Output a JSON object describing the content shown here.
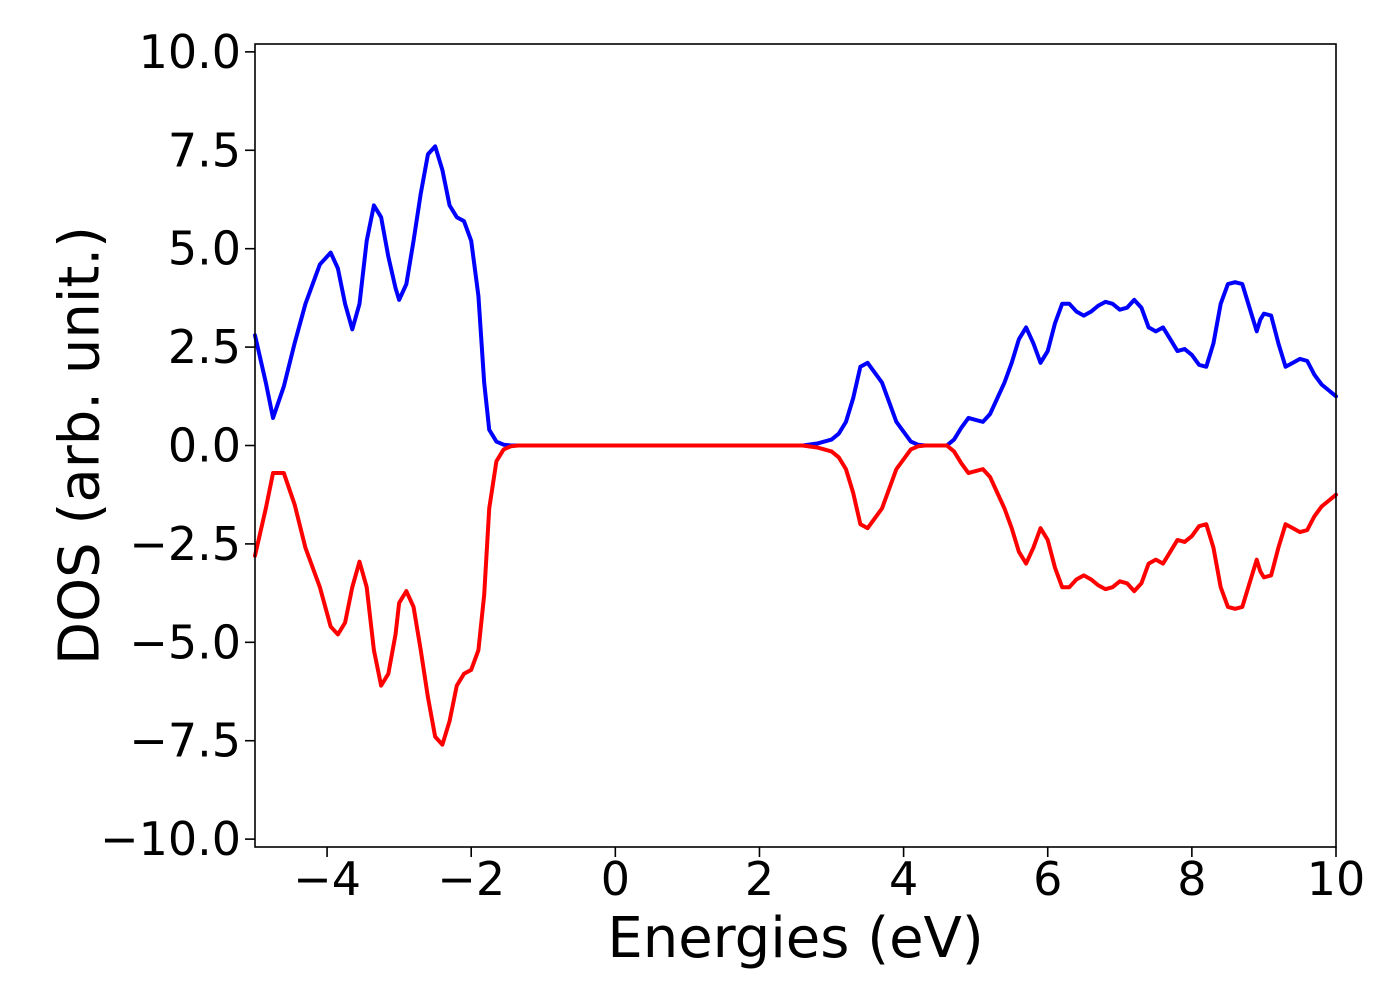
{
  "chart_data": {
    "type": "line",
    "title": "",
    "xlabel": "Energies (eV)",
    "ylabel": "DOS (arb. unit.)",
    "xlim": [
      -5,
      10
    ],
    "ylim": [
      -10.2,
      10.2
    ],
    "xticks": [
      -4,
      -2,
      0,
      2,
      4,
      6,
      8,
      10
    ],
    "xtick_labels": [
      "−4",
      "−2",
      "0",
      "2",
      "4",
      "6",
      "8",
      "10"
    ],
    "yticks": [
      10,
      7.5,
      5,
      2.5,
      0,
      -2.5,
      -5,
      -7.5,
      -10
    ],
    "ytick_labels": [
      "10.0",
      "7.5",
      "5.0",
      "2.5",
      "0.0",
      "−2.5",
      "−5.0",
      "−7.5",
      "−10.0"
    ],
    "grid": false,
    "legend": "none",
    "series": [
      {
        "color": "#0000ff",
        "x": [
          -5.0,
          -4.85,
          -4.75,
          -4.6,
          -4.45,
          -4.3,
          -4.1,
          -3.95,
          -3.85,
          -3.75,
          -3.65,
          -3.55,
          -3.45,
          -3.35,
          -3.25,
          -3.15,
          -3.05,
          -3.0,
          -2.9,
          -2.8,
          -2.7,
          -2.6,
          -2.5,
          -2.4,
          -2.3,
          -2.2,
          -2.1,
          -2.0,
          -1.9,
          -1.82,
          -1.75,
          -1.65,
          -1.55,
          -1.45,
          -1.35,
          -1.25,
          -1.2,
          -1.1,
          -1.0,
          -0.9,
          -0.8,
          -0.7,
          -0.6,
          -0.5,
          0.0,
          0.5,
          0.8,
          1.0,
          1.2,
          1.3,
          1.4,
          1.5,
          1.6,
          1.7,
          1.8,
          1.9,
          2.0,
          2.2,
          2.4,
          2.6,
          2.8,
          2.9,
          3.0,
          3.1,
          3.2,
          3.3,
          3.4,
          3.5,
          3.7,
          3.9,
          4.1,
          4.2,
          4.3,
          4.4,
          4.5,
          4.6,
          4.7,
          4.8,
          4.9,
          5.0,
          5.1,
          5.2,
          5.3,
          5.4,
          5.5,
          5.6,
          5.7,
          5.8,
          5.9,
          6.0,
          6.1,
          6.2,
          6.3,
          6.4,
          6.5,
          6.6,
          6.7,
          6.8,
          6.9,
          7.0,
          7.1,
          7.2,
          7.3,
          7.4,
          7.5,
          7.6,
          7.7,
          7.8,
          7.9,
          8.0,
          8.1,
          8.2,
          8.3,
          8.4,
          8.5,
          8.6,
          8.7,
          8.8,
          8.9,
          8.95,
          9.0,
          9.1,
          9.2,
          9.3,
          9.4,
          9.5,
          9.6,
          9.7,
          9.8,
          9.9,
          10.0
        ],
        "y": [
          2.8,
          1.6,
          0.7,
          1.5,
          2.6,
          3.6,
          4.6,
          4.9,
          4.5,
          3.6,
          2.95,
          3.6,
          5.2,
          6.1,
          5.8,
          4.8,
          4.0,
          3.7,
          4.1,
          5.2,
          6.4,
          7.4,
          7.6,
          7.0,
          6.1,
          5.8,
          5.7,
          5.2,
          3.8,
          1.6,
          0.4,
          0.1,
          0.02,
          0.0,
          0.0,
          0.0,
          0.0,
          0.0,
          0.0,
          0.0,
          0.0,
          0.0,
          0.0,
          0.0,
          0.0,
          0.0,
          0.0,
          0.0,
          0.0,
          0.0,
          0.0,
          0.0,
          0.0,
          0.0,
          0.0,
          0.0,
          0.0,
          0.0,
          0.0,
          0.0,
          0.05,
          0.1,
          0.15,
          0.3,
          0.6,
          1.2,
          2.0,
          2.1,
          1.6,
          0.6,
          0.1,
          0.02,
          0.0,
          0.0,
          0.0,
          0.0,
          0.15,
          0.45,
          0.7,
          0.65,
          0.6,
          0.8,
          1.2,
          1.6,
          2.1,
          2.7,
          3.0,
          2.6,
          2.1,
          2.4,
          3.1,
          3.6,
          3.6,
          3.4,
          3.3,
          3.4,
          3.55,
          3.65,
          3.6,
          3.45,
          3.5,
          3.7,
          3.5,
          3.0,
          2.9,
          3.0,
          2.7,
          2.4,
          2.45,
          2.3,
          2.05,
          2.0,
          2.6,
          3.6,
          4.1,
          4.15,
          4.1,
          3.5,
          2.9,
          3.2,
          3.35,
          3.3,
          2.6,
          2.0,
          2.1,
          2.2,
          2.15,
          1.8,
          1.55,
          1.4,
          1.25
        ]
      },
      {
        "color": "#ff0000",
        "x": [
          -5.0,
          -4.85,
          -4.75,
          -4.6,
          -4.45,
          -4.3,
          -4.1,
          -3.95,
          -3.85,
          -3.75,
          -3.65,
          -3.55,
          -3.45,
          -3.35,
          -3.25,
          -3.15,
          -3.05,
          -3.0,
          -2.9,
          -2.8,
          -2.7,
          -2.6,
          -2.5,
          -2.4,
          -2.3,
          -2.2,
          -2.1,
          -2.0,
          -1.9,
          -1.82,
          -1.75,
          -1.65,
          -1.55,
          -1.45,
          -1.35,
          -1.25,
          -1.2,
          -1.1,
          -1.0,
          -0.9,
          -0.8,
          -0.7,
          -0.6,
          -0.5,
          0.0,
          0.5,
          0.8,
          1.0,
          1.2,
          1.3,
          1.4,
          1.5,
          1.6,
          1.7,
          1.8,
          1.9,
          2.0,
          2.2,
          2.4,
          2.6,
          2.8,
          2.9,
          3.0,
          3.1,
          3.2,
          3.3,
          3.4,
          3.5,
          3.7,
          3.9,
          4.1,
          4.2,
          4.3,
          4.4,
          4.5,
          4.6,
          4.7,
          4.8,
          4.9,
          5.0,
          5.1,
          5.2,
          5.3,
          5.4,
          5.5,
          5.6,
          5.7,
          5.8,
          5.9,
          6.0,
          6.1,
          6.2,
          6.3,
          6.4,
          6.5,
          6.6,
          6.7,
          6.8,
          6.9,
          7.0,
          7.1,
          7.2,
          7.3,
          7.4,
          7.5,
          7.6,
          7.7,
          7.8,
          7.9,
          8.0,
          8.1,
          8.2,
          8.3,
          8.4,
          8.5,
          8.6,
          8.7,
          8.8,
          8.9,
          8.95,
          9.0,
          9.1,
          9.2,
          9.3,
          9.4,
          9.5,
          9.6,
          9.7,
          9.8,
          9.9,
          10.0
        ],
        "y": [
          -2.8,
          -1.6,
          -0.7,
          -0.7,
          -1.5,
          -2.6,
          -3.6,
          -4.6,
          -4.8,
          -4.5,
          -3.6,
          -2.95,
          -3.6,
          -5.2,
          -6.1,
          -5.8,
          -4.8,
          -4.0,
          -3.7,
          -4.1,
          -5.2,
          -6.4,
          -7.4,
          -7.6,
          -7.0,
          -6.1,
          -5.8,
          -5.7,
          -5.2,
          -3.8,
          -1.6,
          -0.4,
          -0.1,
          -0.02,
          0.0,
          0.0,
          0.0,
          0.0,
          0.0,
          0.0,
          0.0,
          0.0,
          0.0,
          0.0,
          0.0,
          0.0,
          0.0,
          0.0,
          0.0,
          0.0,
          0.0,
          0.0,
          0.0,
          0.0,
          0.0,
          0.0,
          0.0,
          0.0,
          0.0,
          0.0,
          -0.05,
          -0.1,
          -0.15,
          -0.3,
          -0.6,
          -1.2,
          -2.0,
          -2.1,
          -1.6,
          -0.6,
          -0.1,
          -0.02,
          0.0,
          0.0,
          0.0,
          0.0,
          -0.15,
          -0.45,
          -0.7,
          -0.65,
          -0.6,
          -0.8,
          -1.2,
          -1.6,
          -2.1,
          -2.7,
          -3.0,
          -2.6,
          -2.1,
          -2.4,
          -3.1,
          -3.6,
          -3.6,
          -3.4,
          -3.3,
          -3.4,
          -3.55,
          -3.65,
          -3.6,
          -3.45,
          -3.5,
          -3.7,
          -3.5,
          -3.0,
          -2.9,
          -3.0,
          -2.7,
          -2.4,
          -2.45,
          -2.3,
          -2.05,
          -2.0,
          -2.6,
          -3.6,
          -4.1,
          -4.15,
          -4.1,
          -3.5,
          -2.9,
          -3.2,
          -3.35,
          -3.3,
          -2.6,
          -2.0,
          -2.1,
          -2.2,
          -2.15,
          -1.8,
          -1.55,
          -1.4,
          -1.25
        ]
      }
    ]
  }
}
